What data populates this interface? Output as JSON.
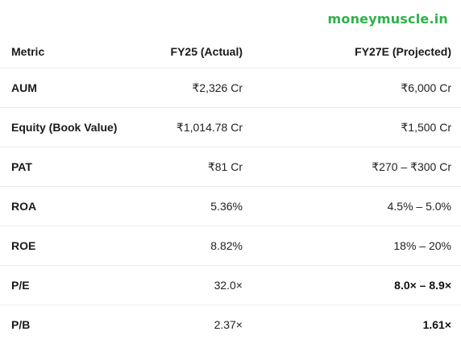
{
  "brand": {
    "watermark": "moneymuscle.in",
    "color": "#2eb14a"
  },
  "table": {
    "headers": {
      "metric": "Metric",
      "actual": "FY25 (Actual)",
      "projected": "FY27E (Projected)"
    },
    "rows": [
      {
        "metric": "AUM",
        "actual": "₹2,326 Cr",
        "projected": "₹6,000 Cr",
        "projected_bold": false
      },
      {
        "metric": "Equity (Book Value)",
        "actual": "₹1,014.78 Cr",
        "projected": "₹1,500 Cr",
        "projected_bold": false
      },
      {
        "metric": "PAT",
        "actual": "₹81 Cr",
        "projected": "₹270 – ₹300 Cr",
        "projected_bold": false
      },
      {
        "metric": "ROA",
        "actual": "5.36%",
        "projected": "4.5% – 5.0%",
        "projected_bold": false
      },
      {
        "metric": "ROE",
        "actual": "8.82%",
        "projected": "18% – 20%",
        "projected_bold": false
      },
      {
        "metric": "P/E",
        "actual": "32.0×",
        "projected": "8.0× – 8.9×",
        "projected_bold": true
      },
      {
        "metric": "P/B",
        "actual": "2.37×",
        "projected": "1.61×",
        "projected_bold": true
      }
    ]
  }
}
